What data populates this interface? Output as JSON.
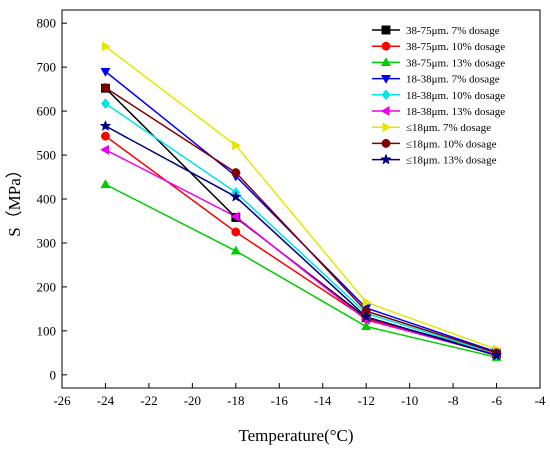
{
  "chart_data": {
    "type": "line",
    "title": "",
    "xlabel": "Temperature(°C)",
    "ylabel": "S（MPa）",
    "xlim": [
      -26,
      -4
    ],
    "ylim": [
      -30,
      830
    ],
    "xticks": [
      -26,
      -24,
      -22,
      -20,
      -18,
      -16,
      -14,
      -12,
      -10,
      -8,
      -6,
      -4
    ],
    "yticks": [
      0,
      100,
      200,
      300,
      400,
      500,
      600,
      700,
      800
    ],
    "grid": false,
    "legend_position": "top-right",
    "x": [
      -24,
      -18,
      -12,
      -6
    ],
    "series": [
      {
        "name": "38-75μm. 7% dosage",
        "color": "#000000",
        "marker": "square",
        "values": [
          652,
          358,
          130,
          48
        ]
      },
      {
        "name": "38-75μm. 10% dosage",
        "color": "#ff0000",
        "marker": "circle",
        "values": [
          543,
          325,
          128,
          45
        ]
      },
      {
        "name": "38-75μm. 13% dosage",
        "color": "#00cc00",
        "marker": "triangle-up",
        "values": [
          433,
          282,
          110,
          40
        ]
      },
      {
        "name": "18-38μm. 7% dosage",
        "color": "#0000ff",
        "marker": "triangle-down",
        "values": [
          690,
          452,
          152,
          52
        ]
      },
      {
        "name": "18-38μm. 10% dosage",
        "color": "#00e5e5",
        "marker": "diamond",
        "values": [
          617,
          415,
          140,
          47
        ]
      },
      {
        "name": "18-38μm. 13% dosage",
        "color": "#ee00ee",
        "marker": "triangle-left",
        "values": [
          512,
          360,
          125,
          46
        ]
      },
      {
        "name": "≤18μm. 7% dosage",
        "color": "#e6e600",
        "marker": "triangle-right",
        "values": [
          747,
          522,
          165,
          58
        ]
      },
      {
        "name": "≤18μm. 10% dosage",
        "color": "#800000",
        "marker": "circle",
        "values": [
          653,
          460,
          145,
          50
        ]
      },
      {
        "name": "≤18μm. 13% dosage",
        "color": "#000080",
        "marker": "star",
        "values": [
          566,
          405,
          132,
          44
        ]
      }
    ]
  }
}
